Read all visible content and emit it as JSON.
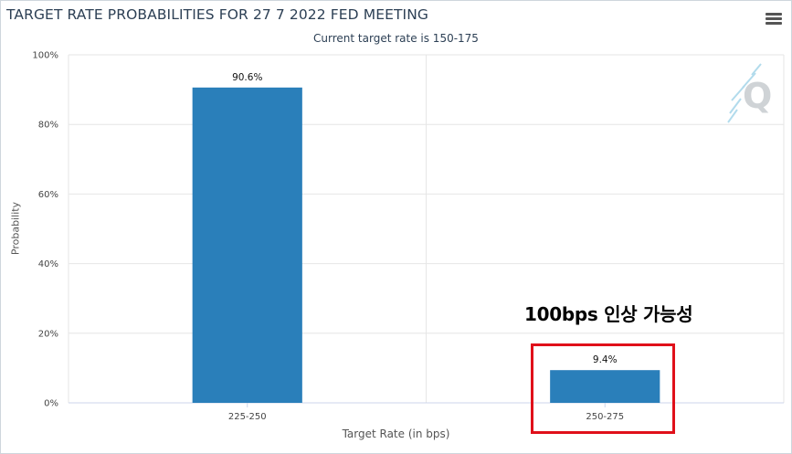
{
  "chart_data": {
    "type": "bar",
    "title": "TARGET RATE PROBABILITIES FOR 27 7 2022 FED MEETING",
    "subtitle": "Current target rate is 150-175",
    "xlabel": "Target Rate (in bps)",
    "ylabel": "Probability",
    "categories": [
      "225-250",
      "250-275"
    ],
    "values": [
      90.6,
      9.4
    ],
    "data_labels": [
      "90.6%",
      "9.4%"
    ],
    "y_ticks": [
      "0%",
      "20%",
      "40%",
      "60%",
      "80%",
      "100%"
    ],
    "ylim": [
      0,
      100
    ],
    "grid": true,
    "bar_color": "#2a7fba"
  },
  "annotation": {
    "text": "100bps 인상 가능성",
    "highlight_color": "#e0101a"
  },
  "toolbar": {
    "menu_icon": "hamburger-menu-icon"
  },
  "watermark_icon": "quikstrike-logo-icon"
}
